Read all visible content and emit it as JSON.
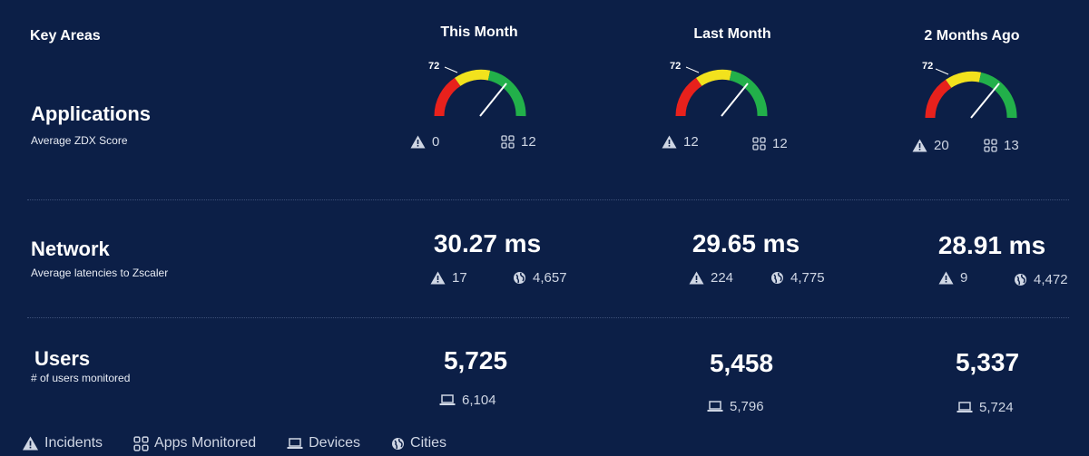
{
  "header": {
    "key_areas": "Key Areas",
    "columns": [
      "This Month",
      "Last Month",
      "2 Months Ago"
    ]
  },
  "applications": {
    "title": "Applications",
    "subtitle": "Average ZDX Score",
    "cells": [
      {
        "score": 72,
        "incidents": "0",
        "apps": "12"
      },
      {
        "score": 72,
        "incidents": "12",
        "apps": "12"
      },
      {
        "score": 72,
        "incidents": "20",
        "apps": "13"
      }
    ]
  },
  "network": {
    "title": "Network",
    "subtitle": "Average latencies to Zscaler",
    "cells": [
      {
        "latency": "30.27 ms",
        "incidents": "17",
        "cities": "4,657"
      },
      {
        "latency": "29.65 ms",
        "incidents": "224",
        "cities": "4,775"
      },
      {
        "latency": "28.91 ms",
        "incidents": "9",
        "cities": "4,472"
      }
    ]
  },
  "users": {
    "title": "Users",
    "subtitle": "# of users monitored",
    "cells": [
      {
        "count": "5,725",
        "devices": "6,104"
      },
      {
        "count": "5,458",
        "devices": "5,796"
      },
      {
        "count": "5,337",
        "devices": "5,724"
      }
    ]
  },
  "legend": {
    "incidents": "Incidents",
    "apps_monitored": "Apps Monitored",
    "devices": "Devices",
    "cities": "Cities"
  },
  "colors": {
    "background": "#0c1f47",
    "gauge_red": "#e8211c",
    "gauge_yellow": "#f2e21d",
    "gauge_green": "#22b04a"
  },
  "icons": {
    "incident": "warning-triangle-icon",
    "apps": "apps-grid-icon",
    "device": "laptop-icon",
    "city": "globe-icon"
  }
}
